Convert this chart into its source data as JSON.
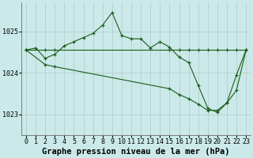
{
  "title": "Graphe pression niveau de la mer (hPa)",
  "background_color": "#cbe9e9",
  "plot_bg_color": "#cbe9e9",
  "line_color": "#1a5c1a",
  "marker_color": "#1a5c1a",
  "grid_color": "#b0c8c8",
  "xlim": [
    -0.5,
    23.5
  ],
  "ylim": [
    1022.5,
    1025.7
  ],
  "yticks": [
    1023,
    1024,
    1025
  ],
  "xticks": [
    0,
    1,
    2,
    3,
    4,
    5,
    6,
    7,
    8,
    9,
    10,
    11,
    12,
    13,
    14,
    15,
    16,
    17,
    18,
    19,
    20,
    21,
    22,
    23
  ],
  "series": [
    {
      "x": [
        0,
        1,
        2,
        3,
        4,
        5,
        6,
        7,
        8,
        9,
        10,
        11,
        12,
        13,
        14,
        15,
        16,
        17,
        18,
        19,
        20,
        21,
        22,
        23
      ],
      "y": [
        1024.55,
        1024.6,
        1024.35,
        1024.45,
        1024.65,
        1024.75,
        1024.85,
        1024.95,
        1025.15,
        1025.45,
        1024.9,
        1024.82,
        1024.82,
        1024.6,
        1024.75,
        1024.62,
        1024.38,
        1024.25,
        1023.7,
        1023.15,
        1023.05,
        1023.28,
        1023.58,
        1024.55
      ]
    },
    {
      "x": [
        0,
        2,
        3,
        15,
        16,
        17,
        18,
        19,
        20,
        21,
        22,
        23
      ],
      "y": [
        1024.55,
        1024.55,
        1024.55,
        1024.55,
        1024.55,
        1024.55,
        1024.55,
        1024.55,
        1024.55,
        1024.55,
        1024.55,
        1024.55
      ]
    },
    {
      "x": [
        0,
        2,
        3,
        15,
        16,
        17,
        18,
        19,
        20,
        21,
        22,
        23
      ],
      "y": [
        1024.55,
        1024.2,
        1024.15,
        1023.62,
        1023.48,
        1023.38,
        1023.25,
        1023.1,
        1023.1,
        1023.28,
        1023.95,
        1024.55
      ]
    }
  ],
  "title_fontsize": 7.5,
  "tick_fontsize": 6
}
